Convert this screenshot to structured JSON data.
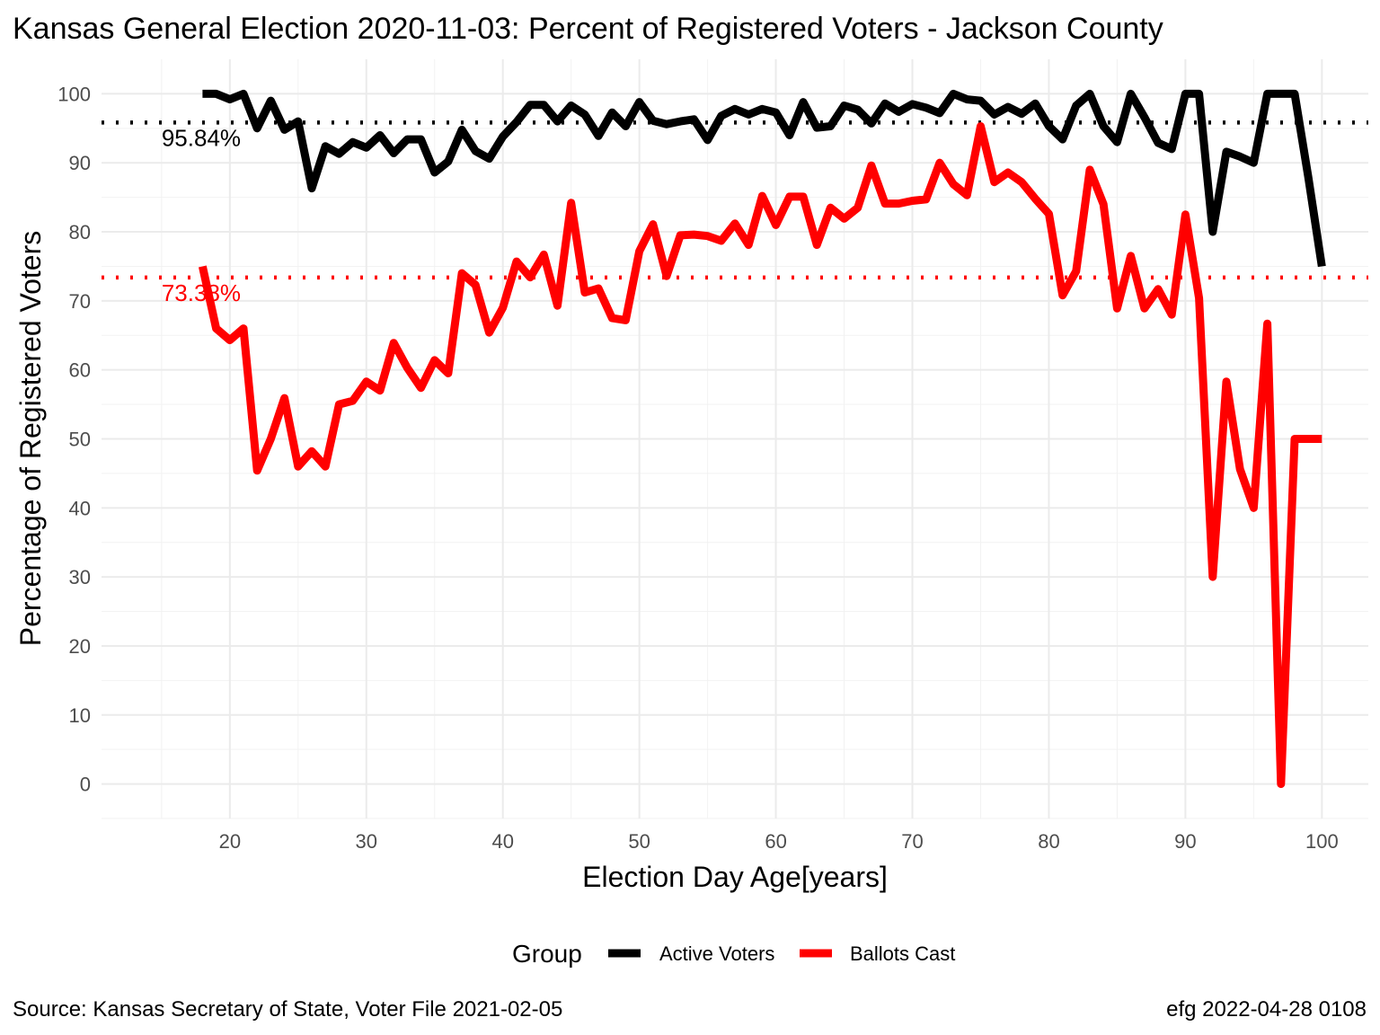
{
  "chart_data": {
    "type": "line",
    "title": "Kansas General Election 2020-11-03:  Percent of Registered Voters - Jackson County",
    "xlabel": "Election Day Age[years]",
    "ylabel": "Percentage of Registered Voters",
    "xlim": [
      10.6,
      103.4
    ],
    "ylim": [
      -5,
      105
    ],
    "x_ticks": [
      20,
      30,
      40,
      50,
      60,
      70,
      80,
      90,
      100
    ],
    "y_ticks": [
      0,
      10,
      20,
      30,
      40,
      50,
      60,
      70,
      80,
      90,
      100
    ],
    "grid": true,
    "legend_position": "bottom",
    "legend_title": "Group",
    "x": [
      18,
      19,
      20,
      21,
      22,
      23,
      24,
      25,
      26,
      27,
      28,
      29,
      30,
      31,
      32,
      33,
      34,
      35,
      36,
      37,
      38,
      39,
      40,
      41,
      42,
      43,
      44,
      45,
      46,
      47,
      48,
      49,
      50,
      51,
      52,
      53,
      54,
      55,
      56,
      57,
      58,
      59,
      60,
      61,
      62,
      63,
      64,
      65,
      66,
      67,
      68,
      69,
      70,
      71,
      72,
      73,
      74,
      75,
      76,
      77,
      78,
      79,
      80,
      81,
      82,
      83,
      84,
      85,
      86,
      87,
      88,
      89,
      90,
      91,
      92,
      93,
      94,
      95,
      96,
      97,
      98,
      99,
      100
    ],
    "series": [
      {
        "name": "Active Voters",
        "color": "#000000",
        "values": [
          100,
          100,
          99.2,
          100,
          95,
          99,
          94.8,
          96,
          86.3,
          92.4,
          91.3,
          93,
          92.2,
          94,
          91.4,
          93.4,
          93.4,
          88.6,
          90.2,
          94.8,
          91.7,
          90.6,
          93.8,
          95.9,
          98.4,
          98.4,
          96,
          98.3,
          97,
          93.9,
          97.3,
          95.3,
          98.8,
          96.1,
          95.6,
          96,
          96.3,
          93.3,
          96.8,
          97.8,
          97,
          97.8,
          97.3,
          94,
          98.8,
          95.1,
          95.3,
          98.3,
          97.7,
          95.7,
          98.6,
          97.4,
          98.5,
          98,
          97.2,
          100,
          99.2,
          99,
          97,
          98.1,
          97.1,
          98.6,
          95.3,
          93.4,
          98.3,
          100,
          95.3,
          93,
          100,
          96.6,
          92.9,
          92,
          100,
          100,
          80,
          91.6,
          90.9,
          90,
          100,
          100,
          100,
          88,
          75
        ]
      },
      {
        "name": "Ballots Cast",
        "color": "#ff0000",
        "values": [
          75,
          66,
          64.3,
          66,
          45.4,
          50,
          55.9,
          46,
          48.2,
          46,
          55,
          55.5,
          58.3,
          57,
          63.9,
          60.3,
          57.4,
          61.4,
          59.5,
          74,
          72.3,
          65.4,
          69,
          75.7,
          73.4,
          76.7,
          69.3,
          84.2,
          71.2,
          71.8,
          67.5,
          67.2,
          77.2,
          81.1,
          73.6,
          79.5,
          79.6,
          79.4,
          78.7,
          81.2,
          78.1,
          85.2,
          81,
          85.1,
          85.1,
          78.1,
          83.5,
          81.9,
          83.5,
          89.6,
          84.1,
          84.1,
          84.5,
          84.7,
          90,
          86.9,
          85.3,
          95.3,
          87.2,
          88.6,
          87.2,
          84.8,
          82.6,
          70.8,
          74.3,
          89,
          84,
          68.9,
          76.5,
          68.9,
          71.7,
          68,
          82.5,
          70.4,
          30,
          58.3,
          45.6,
          40,
          66.7,
          0,
          50,
          50,
          50
        ]
      }
    ],
    "reference_lines": [
      {
        "value": 95.84,
        "label": "95.84%",
        "color": "#000000"
      },
      {
        "value": 73.38,
        "label": "73.38%",
        "color": "#ff0000"
      }
    ]
  },
  "caption_left": "Source:  Kansas Secretary of State, Voter File  2021-02-05",
  "caption_right": "efg 2022-04-28 0108"
}
